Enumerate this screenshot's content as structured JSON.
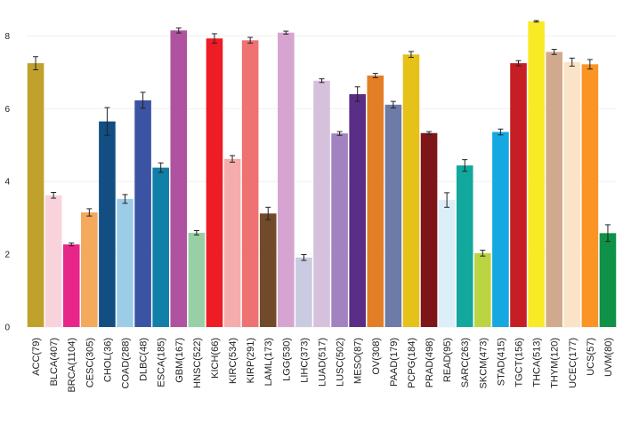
{
  "chart_data": {
    "type": "bar",
    "title": "",
    "xlabel": "",
    "ylabel": "",
    "ylim": [
      0,
      8.4
    ],
    "yticks": [
      "0",
      "2",
      "4",
      "6",
      "8"
    ],
    "grid": true,
    "categories": [
      "ACC(79)",
      "BLCA(407)",
      "BRCA(1104)",
      "CESC(305)",
      "CHOL(36)",
      "COAD(288)",
      "DLBC(48)",
      "ESCA(185)",
      "GBM(167)",
      "HNSC(522)",
      "KICH(66)",
      "KIRC(534)",
      "KIRP(291)",
      "LAML(173)",
      "LGG(530)",
      "LIHC(373)",
      "LUAD(517)",
      "LUSC(502)",
      "MESO(87)",
      "OV(308)",
      "PAAD(179)",
      "PCPG(184)",
      "PRAD(498)",
      "READ(95)",
      "SARC(263)",
      "SKCM(473)",
      "STAD(415)",
      "TGCT(156)",
      "THCA(513)",
      "THYM(120)",
      "UCEC(177)",
      "UCS(57)",
      "UVM(80)"
    ],
    "values": [
      7.25,
      3.62,
      2.27,
      3.15,
      5.65,
      3.52,
      6.23,
      4.38,
      8.15,
      2.59,
      7.93,
      4.62,
      7.88,
      3.12,
      8.09,
      1.91,
      6.77,
      5.32,
      6.4,
      6.91,
      6.11,
      7.49,
      5.33,
      3.49,
      4.44,
      2.03,
      5.36,
      7.25,
      8.4,
      7.56,
      7.28,
      7.22,
      2.58
    ],
    "errors": [
      0.18,
      0.08,
      0.04,
      0.1,
      0.38,
      0.12,
      0.22,
      0.13,
      0.07,
      0.06,
      0.13,
      0.09,
      0.08,
      0.17,
      0.04,
      0.08,
      0.05,
      0.05,
      0.2,
      0.06,
      0.09,
      0.08,
      0.04,
      0.2,
      0.16,
      0.08,
      0.08,
      0.07,
      0.02,
      0.07,
      0.11,
      0.13,
      0.23
    ],
    "colors": [
      "#BFA12B",
      "#F9D3DC",
      "#E8268A",
      "#F4A95C",
      "#124E82",
      "#9DCCE9",
      "#3A54A3",
      "#127FA8",
      "#AF529F",
      "#98D0A6",
      "#EE1C24",
      "#F4ACAC",
      "#EE7272",
      "#704A2A",
      "#D6A4D0",
      "#C9CCE0",
      "#D6C1DD",
      "#A283BF",
      "#5A2D87",
      "#E27F26",
      "#6E7BA6",
      "#E5C119",
      "#7E1519",
      "#DCEEF8",
      "#12A89D",
      "#BBD542",
      "#16A8E0",
      "#C51F25",
      "#F8EB25",
      "#D1AA8D",
      "#FBE3C7",
      "#F99425",
      "#0F9248"
    ]
  }
}
